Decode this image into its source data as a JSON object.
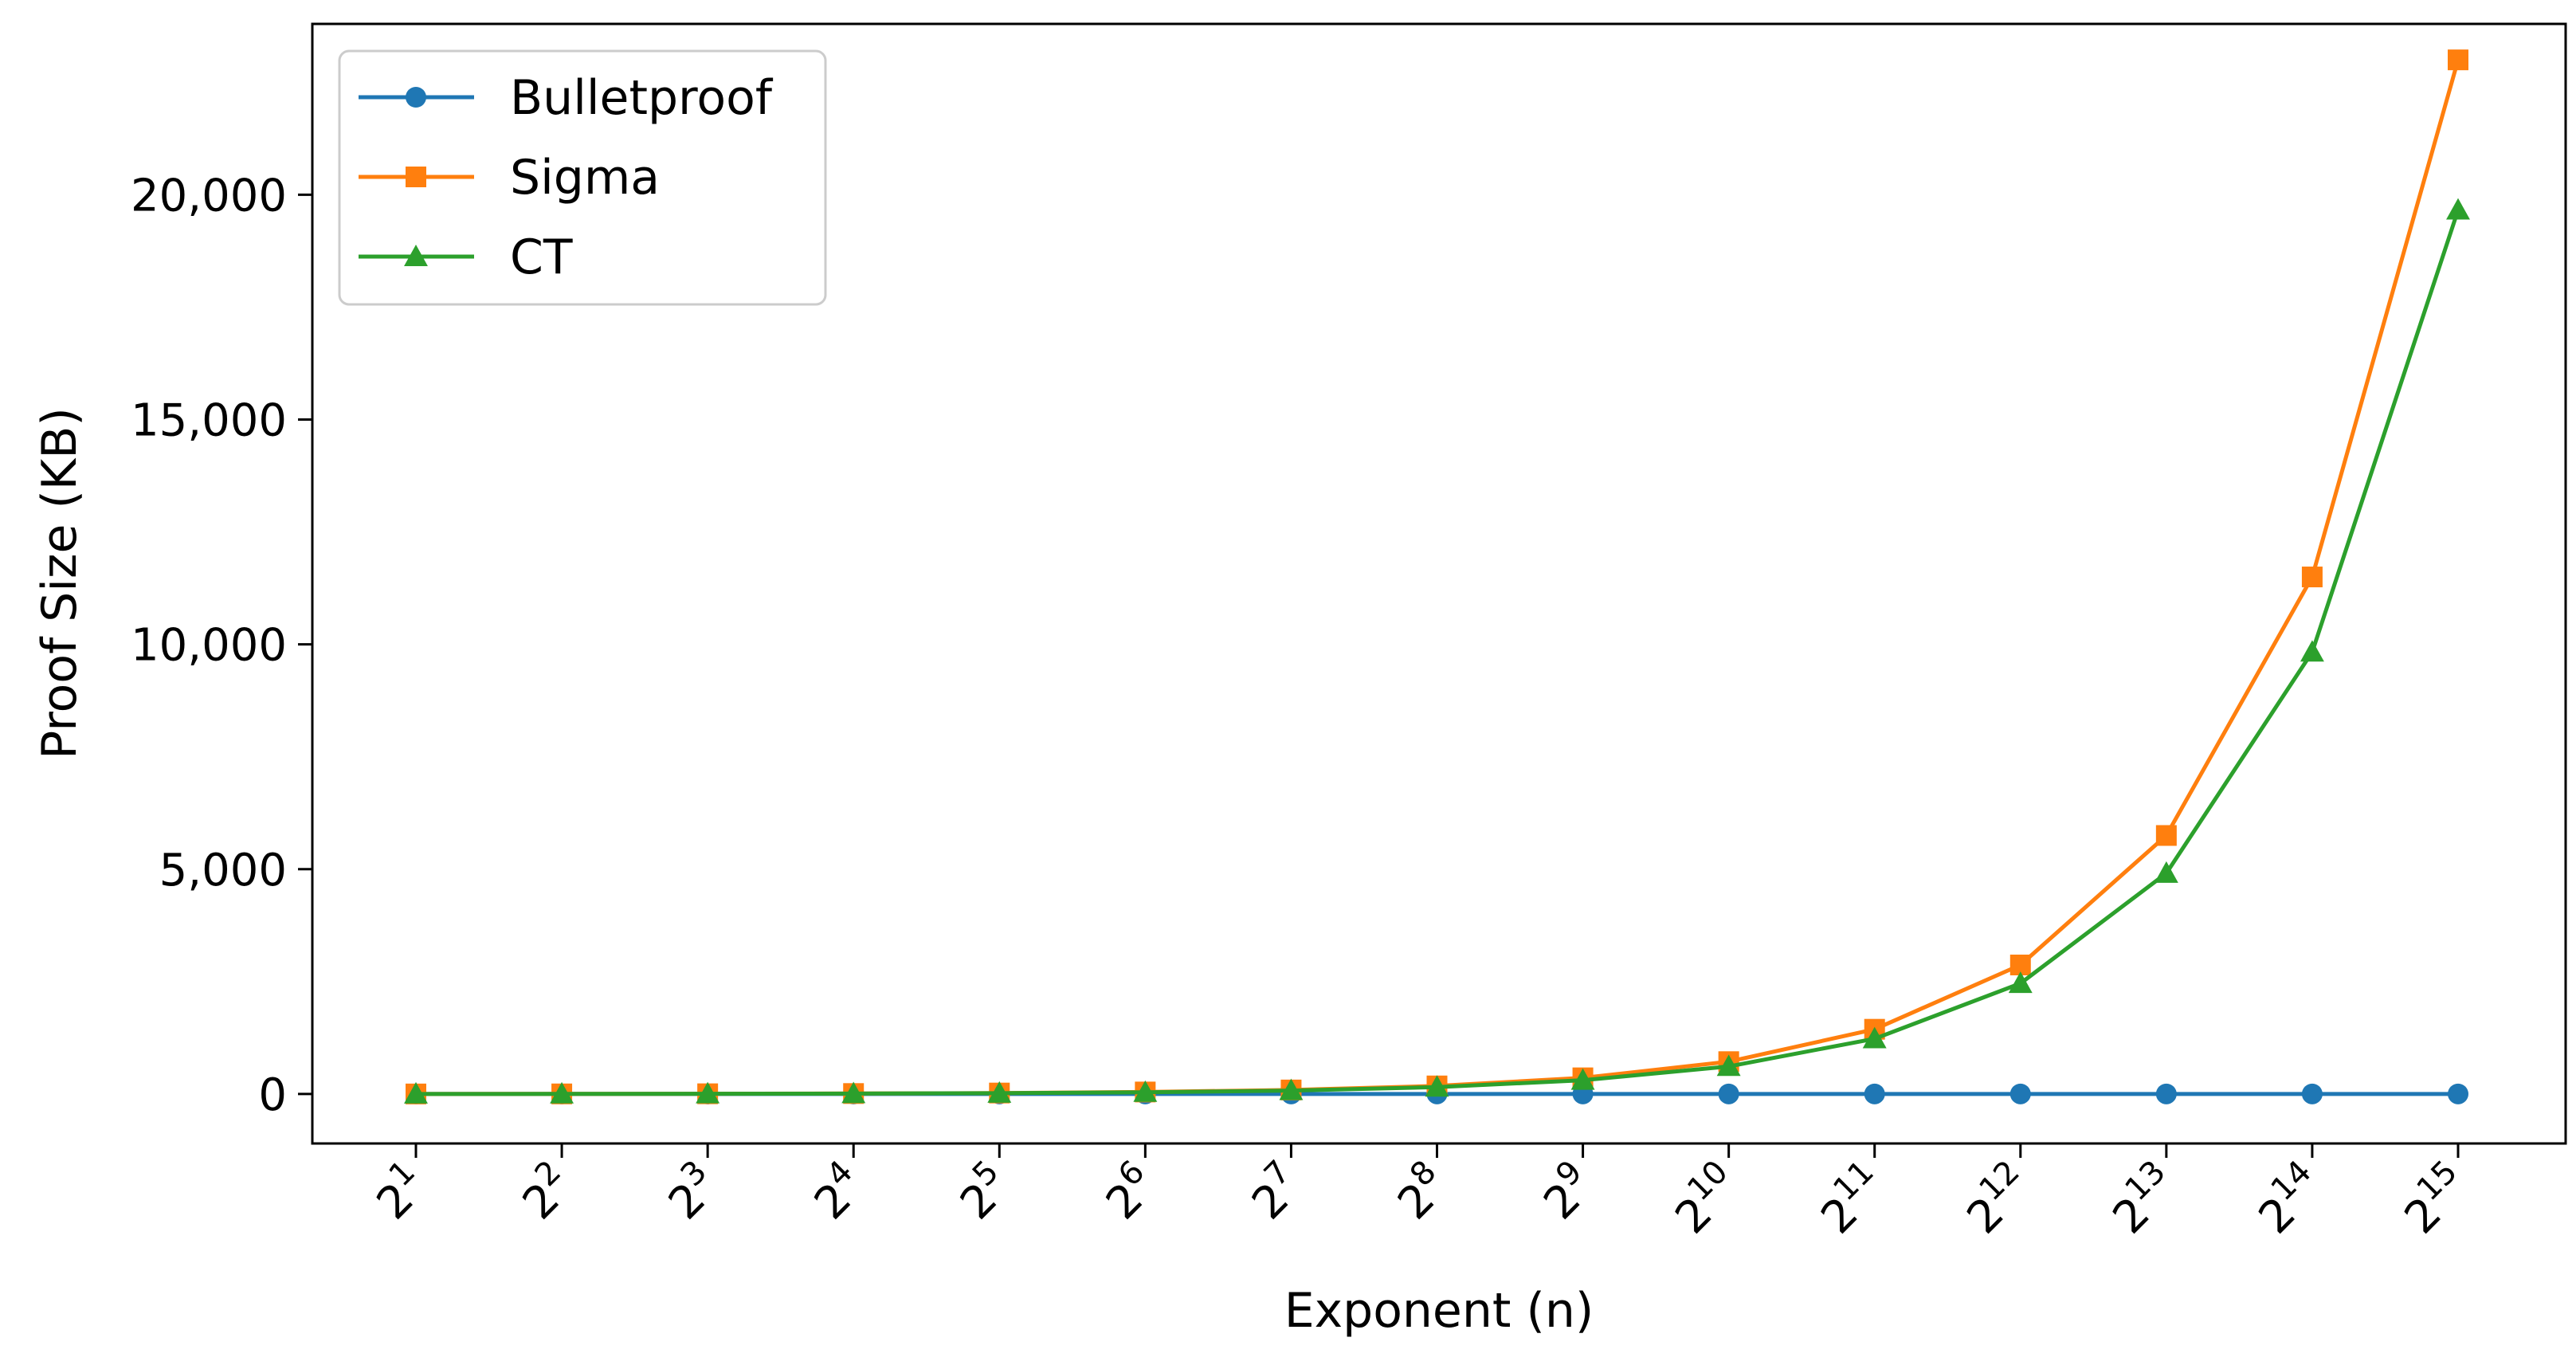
{
  "chart_data": {
    "type": "line",
    "xlabel": "Exponent (n)",
    "ylabel": "Proof Size (KB)",
    "categories": [
      {
        "base": "2",
        "exp": "1"
      },
      {
        "base": "2",
        "exp": "2"
      },
      {
        "base": "2",
        "exp": "3"
      },
      {
        "base": "2",
        "exp": "4"
      },
      {
        "base": "2",
        "exp": "5"
      },
      {
        "base": "2",
        "exp": "6"
      },
      {
        "base": "2",
        "exp": "7"
      },
      {
        "base": "2",
        "exp": "8"
      },
      {
        "base": "2",
        "exp": "9"
      },
      {
        "base": "2",
        "exp": "10"
      },
      {
        "base": "2",
        "exp": "11"
      },
      {
        "base": "2",
        "exp": "12"
      },
      {
        "base": "2",
        "exp": "13"
      },
      {
        "base": "2",
        "exp": "14"
      },
      {
        "base": "2",
        "exp": "15"
      }
    ],
    "ylim": [
      -1100,
      23800
    ],
    "yticks": [
      0,
      5000,
      10000,
      15000,
      20000
    ],
    "ytick_labels": [
      "0",
      "5,000",
      "10,000",
      "15,000",
      "20,000"
    ],
    "grid": false,
    "legend_position": "top-left",
    "series": [
      {
        "name": "Bulletproof",
        "color": "#1f77b4",
        "marker": "circle",
        "values": [
          0.7,
          0.8,
          0.8,
          0.9,
          1.0,
          1.0,
          1.1,
          1.2,
          1.2,
          1.3,
          1.4,
          1.5,
          1.5,
          1.6,
          1.7
        ]
      },
      {
        "name": "Sigma",
        "color": "#ff7f0e",
        "marker": "square",
        "values": [
          1.4,
          2.8,
          5.6,
          11,
          22,
          45,
          90,
          180,
          360,
          720,
          1440,
          2870,
          5750,
          11500,
          23000
        ]
      },
      {
        "name": "CT",
        "color": "#2ca02c",
        "marker": "triangle",
        "values": [
          1.2,
          2.4,
          4.8,
          9.6,
          19,
          38,
          77,
          154,
          307,
          614,
          1230,
          2460,
          4910,
          9830,
          19660
        ]
      }
    ]
  }
}
